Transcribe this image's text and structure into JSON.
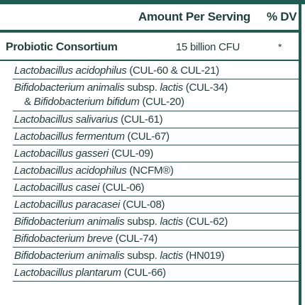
{
  "header": {
    "amount": "Amount Per Serving",
    "dv": "% DV"
  },
  "consortium": {
    "name": "Probiotic Consortium",
    "amount": "15 billion CFU",
    "dv": "*"
  },
  "strains": [
    {
      "species": "Lactobacillus acidophilus",
      "code": " (CUL-60 & CUL-21)"
    },
    {
      "species": "Bifidobacterium animalis",
      "mid": " subsp. ",
      "species2": "lactis",
      "code": " (CUL-34)",
      "line2_prefix": "& ",
      "line2_species": "Bifidobacterium bifidum",
      "line2_code": " (CUL-20)"
    },
    {
      "species": "Lactobacillus salivarius",
      "code": " (CUL-61)"
    },
    {
      "species": "Lactobacillus fermentum",
      "code": " (CUL-67)"
    },
    {
      "species": "Lactobacillus gasseri",
      "code": " (CUL-09)"
    },
    {
      "species": "Lactobacillus acidophilus",
      "code": " (NCFM®)"
    },
    {
      "species": "Lactobacillus casei",
      "code": " (CUL-06)"
    },
    {
      "species": "Lactobacillus paracasei",
      "code": " (CUL-08)"
    },
    {
      "species": "Bifidobacterium animalis",
      "mid": " subsp. ",
      "species2": "lactis",
      "code": " (CUL-62)"
    },
    {
      "species": "Bifidobacterium breve",
      "code": " (CUL-74)"
    },
    {
      "species": "Bifidobacterium animalis",
      "mid": " subsp. ",
      "species2": "lactis",
      "code": " (HN019)"
    },
    {
      "species": "Lactobacillus plantarum",
      "code": " (CUL-66)"
    }
  ]
}
